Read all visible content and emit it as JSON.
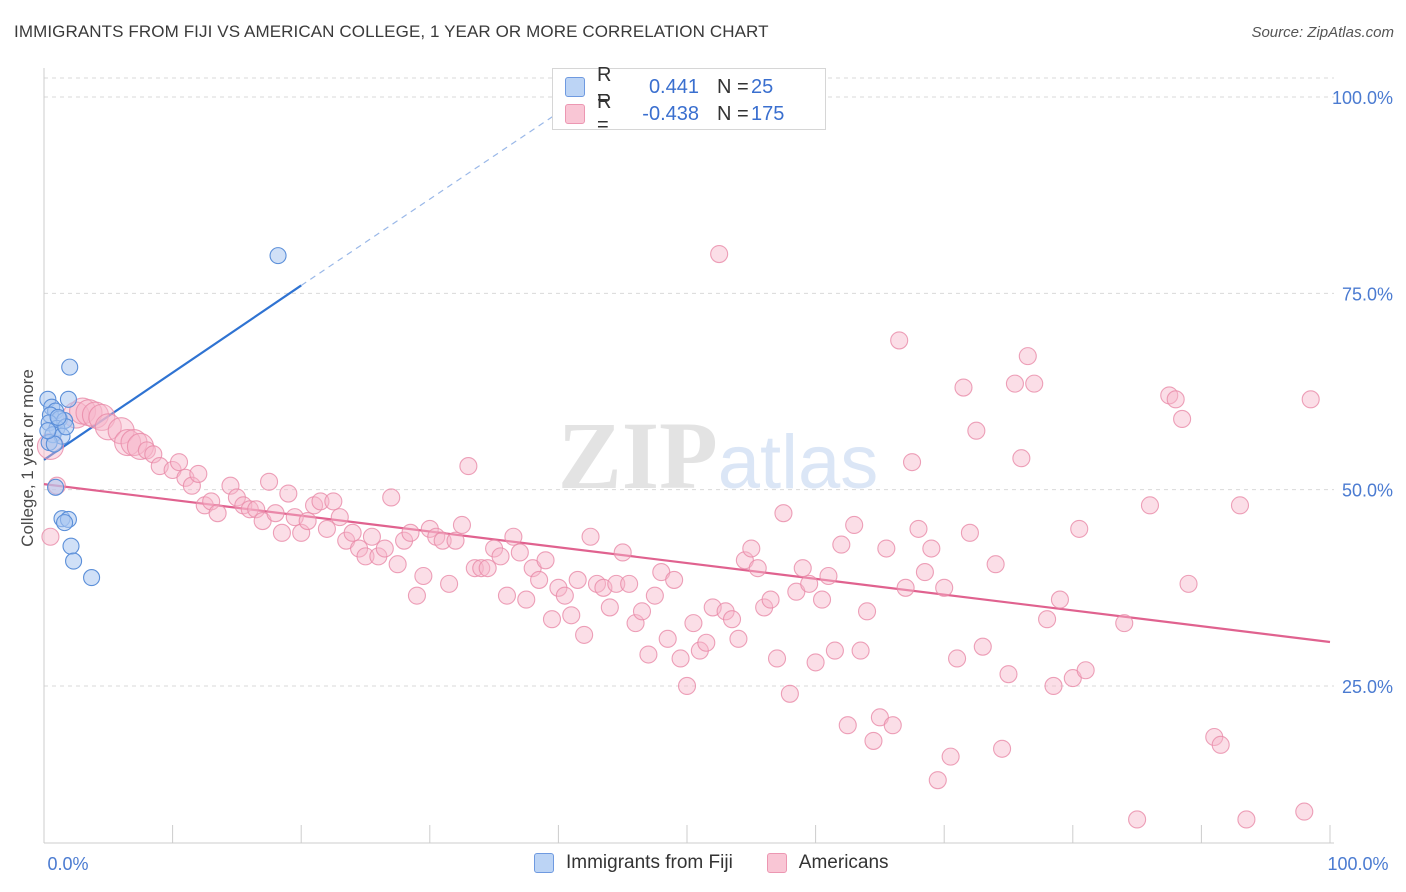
{
  "title": "IMMIGRANTS FROM FIJI VS AMERICAN COLLEGE, 1 YEAR OR MORE CORRELATION CHART",
  "source": "Source: ZipAtlas.com",
  "watermark": "ZIPatlas",
  "colors": {
    "blue_fill": "#a9c7f0",
    "blue_stroke": "#5b8fd9",
    "blue_line": "#2f73d2",
    "pink_fill": "#f7b6c9",
    "pink_stroke": "#e98aa8",
    "pink_line": "#e0628f",
    "tick_text": "#4b7bd1"
  },
  "legend": {
    "rows": [
      {
        "r_label": "R =",
        "r_value": "0.441",
        "n_label": "N =",
        "n_value": "25"
      },
      {
        "r_label": "R =",
        "r_value": "-0.438",
        "n_label": "N =",
        "n_value": "175"
      }
    ]
  },
  "bottom_legend": {
    "series1": "Immigrants from Fiji",
    "series2": "Americans"
  },
  "chart_data": {
    "type": "scatter",
    "xlabel": "",
    "ylabel": "College, 1 year or more",
    "x_range": [
      0,
      100
    ],
    "y_range": [
      5,
      100
    ],
    "x_ticks": [
      {
        "value": 0,
        "label": "0.0%"
      },
      {
        "value": 100,
        "label": "100.0%"
      }
    ],
    "y_ticks": [
      {
        "value": 25,
        "label": "25.0%"
      },
      {
        "value": 50,
        "label": "50.0%"
      },
      {
        "value": 75,
        "label": "75.0%"
      },
      {
        "value": 100,
        "label": "100.0%"
      }
    ],
    "grid": true,
    "legend_position": "top-center",
    "series": [
      {
        "name": "Immigrants from Fiji",
        "color": "#a9c7f0",
        "trend": {
          "x": [
            0,
            20
          ],
          "y": [
            53.8,
            76.0
          ],
          "dashed_to": [
            40,
            98.0
          ]
        },
        "points": [
          [
            0.3,
            61.5
          ],
          [
            0.6,
            60.5
          ],
          [
            0.9,
            60.0
          ],
          [
            0.5,
            59.5
          ],
          [
            1.2,
            59.0
          ],
          [
            0.4,
            58.5
          ],
          [
            1.6,
            58.8
          ],
          [
            1.0,
            57.8
          ],
          [
            0.7,
            57.0
          ],
          [
            1.4,
            56.8
          ],
          [
            0.4,
            56.0
          ],
          [
            0.8,
            55.8
          ],
          [
            2.0,
            65.6
          ],
          [
            1.9,
            61.5
          ],
          [
            1.7,
            58.0
          ],
          [
            0.9,
            50.3
          ],
          [
            1.4,
            46.3
          ],
          [
            1.9,
            46.2
          ],
          [
            1.6,
            45.8
          ],
          [
            2.1,
            42.8
          ],
          [
            2.3,
            40.9
          ],
          [
            3.7,
            38.8
          ],
          [
            18.2,
            79.8
          ],
          [
            0.3,
            57.5
          ],
          [
            1.1,
            59.2
          ]
        ]
      },
      {
        "name": "Americans",
        "color": "#f7b6c9",
        "trend": {
          "x": [
            0,
            100
          ],
          "y": [
            50.7,
            30.6
          ]
        },
        "points": [
          [
            0.5,
            55.5
          ],
          [
            0.5,
            44.0
          ],
          [
            1.0,
            50.5
          ],
          [
            2.5,
            59.5
          ],
          [
            3.0,
            60.0
          ],
          [
            3.5,
            59.8
          ],
          [
            4.0,
            59.5
          ],
          [
            4.5,
            59.2
          ],
          [
            5.0,
            58.0
          ],
          [
            6.0,
            57.5
          ],
          [
            6.5,
            56.0
          ],
          [
            7.0,
            56.0
          ],
          [
            7.5,
            55.5
          ],
          [
            8.0,
            55.0
          ],
          [
            8.5,
            54.5
          ],
          [
            9.0,
            53.0
          ],
          [
            10.0,
            52.5
          ],
          [
            10.5,
            53.5
          ],
          [
            11.0,
            51.5
          ],
          [
            11.5,
            50.5
          ],
          [
            12.0,
            52.0
          ],
          [
            12.5,
            48.0
          ],
          [
            13.0,
            48.5
          ],
          [
            13.5,
            47.0
          ],
          [
            14.5,
            50.5
          ],
          [
            15.0,
            49.0
          ],
          [
            15.5,
            48.0
          ],
          [
            16.0,
            47.5
          ],
          [
            16.5,
            47.5
          ],
          [
            17.0,
            46.0
          ],
          [
            17.5,
            51.0
          ],
          [
            18.0,
            47.0
          ],
          [
            18.5,
            44.5
          ],
          [
            19.0,
            49.5
          ],
          [
            19.5,
            46.5
          ],
          [
            20.0,
            44.5
          ],
          [
            20.5,
            46.0
          ],
          [
            21.0,
            48.0
          ],
          [
            21.5,
            48.5
          ],
          [
            22.0,
            45.0
          ],
          [
            22.5,
            48.5
          ],
          [
            23.0,
            46.5
          ],
          [
            23.5,
            43.5
          ],
          [
            24.0,
            44.5
          ],
          [
            24.5,
            42.5
          ],
          [
            25.0,
            41.5
          ],
          [
            25.5,
            44.0
          ],
          [
            26.0,
            41.5
          ],
          [
            26.5,
            42.5
          ],
          [
            27.0,
            49.0
          ],
          [
            27.5,
            40.5
          ],
          [
            28.0,
            43.5
          ],
          [
            28.5,
            44.5
          ],
          [
            29.0,
            36.5
          ],
          [
            29.5,
            39.0
          ],
          [
            30.0,
            45.0
          ],
          [
            30.5,
            44.0
          ],
          [
            31.0,
            43.5
          ],
          [
            31.5,
            38.0
          ],
          [
            32.0,
            43.5
          ],
          [
            32.5,
            45.5
          ],
          [
            33.0,
            53.0
          ],
          [
            33.5,
            40.0
          ],
          [
            34.0,
            40.0
          ],
          [
            34.5,
            40.0
          ],
          [
            35.0,
            42.5
          ],
          [
            35.5,
            41.5
          ],
          [
            36.0,
            36.5
          ],
          [
            36.5,
            44.0
          ],
          [
            37.0,
            42.0
          ],
          [
            37.5,
            36.0
          ],
          [
            38.0,
            40.0
          ],
          [
            38.5,
            38.5
          ],
          [
            39.0,
            41.0
          ],
          [
            39.5,
            33.5
          ],
          [
            40.0,
            37.5
          ],
          [
            40.5,
            36.5
          ],
          [
            41.0,
            34.0
          ],
          [
            41.5,
            38.5
          ],
          [
            42.0,
            31.5
          ],
          [
            42.5,
            44.0
          ],
          [
            43.0,
            38.0
          ],
          [
            43.5,
            37.5
          ],
          [
            44.0,
            35.0
          ],
          [
            44.5,
            38.0
          ],
          [
            45.0,
            42.0
          ],
          [
            45.5,
            38.0
          ],
          [
            46.0,
            33.0
          ],
          [
            46.5,
            34.5
          ],
          [
            47.0,
            29.0
          ],
          [
            47.5,
            36.5
          ],
          [
            48.0,
            39.5
          ],
          [
            48.5,
            31.0
          ],
          [
            49.0,
            38.5
          ],
          [
            49.5,
            28.5
          ],
          [
            50.0,
            25.0
          ],
          [
            50.5,
            33.0
          ],
          [
            51.0,
            29.5
          ],
          [
            51.5,
            30.5
          ],
          [
            52.0,
            35.0
          ],
          [
            52.5,
            80.0
          ],
          [
            53.0,
            34.5
          ],
          [
            53.5,
            33.5
          ],
          [
            54.0,
            31.0
          ],
          [
            54.5,
            41.0
          ],
          [
            55.0,
            42.5
          ],
          [
            55.5,
            40.0
          ],
          [
            56.0,
            35.0
          ],
          [
            56.5,
            36.0
          ],
          [
            57.0,
            28.5
          ],
          [
            57.5,
            47.0
          ],
          [
            58.0,
            24.0
          ],
          [
            58.5,
            37.0
          ],
          [
            59.0,
            40.0
          ],
          [
            59.5,
            38.0
          ],
          [
            60.0,
            28.0
          ],
          [
            60.5,
            36.0
          ],
          [
            61.0,
            39.0
          ],
          [
            61.5,
            29.5
          ],
          [
            62.0,
            43.0
          ],
          [
            62.5,
            20.0
          ],
          [
            63.0,
            45.5
          ],
          [
            63.5,
            29.5
          ],
          [
            64.0,
            34.5
          ],
          [
            64.5,
            18.0
          ],
          [
            65.0,
            21.0
          ],
          [
            65.5,
            42.5
          ],
          [
            66.0,
            20.0
          ],
          [
            66.5,
            69.0
          ],
          [
            67.0,
            37.5
          ],
          [
            67.5,
            53.5
          ],
          [
            68.0,
            45.0
          ],
          [
            68.5,
            39.5
          ],
          [
            69.0,
            42.5
          ],
          [
            69.5,
            13.0
          ],
          [
            70.0,
            37.5
          ],
          [
            70.5,
            16.0
          ],
          [
            71.0,
            28.5
          ],
          [
            71.5,
            63.0
          ],
          [
            72.0,
            44.5
          ],
          [
            72.5,
            57.5
          ],
          [
            73.0,
            30.0
          ],
          [
            74.0,
            40.5
          ],
          [
            74.5,
            17.0
          ],
          [
            75.0,
            26.5
          ],
          [
            75.5,
            63.5
          ],
          [
            76.0,
            54.0
          ],
          [
            76.5,
            67.0
          ],
          [
            77.0,
            63.5
          ],
          [
            78.0,
            33.5
          ],
          [
            78.5,
            25.0
          ],
          [
            79.0,
            36.0
          ],
          [
            80.0,
            26.0
          ],
          [
            80.5,
            45.0
          ],
          [
            81.0,
            27.0
          ],
          [
            84.0,
            33.0
          ],
          [
            85.0,
            8.0
          ],
          [
            86.0,
            48.0
          ],
          [
            87.5,
            62.0
          ],
          [
            88.0,
            61.5
          ],
          [
            88.5,
            59.0
          ],
          [
            89.0,
            38.0
          ],
          [
            91.0,
            18.5
          ],
          [
            91.5,
            17.5
          ],
          [
            93.0,
            48.0
          ],
          [
            93.5,
            8.0
          ],
          [
            98.0,
            9.0
          ],
          [
            98.5,
            61.5
          ]
        ]
      }
    ]
  }
}
